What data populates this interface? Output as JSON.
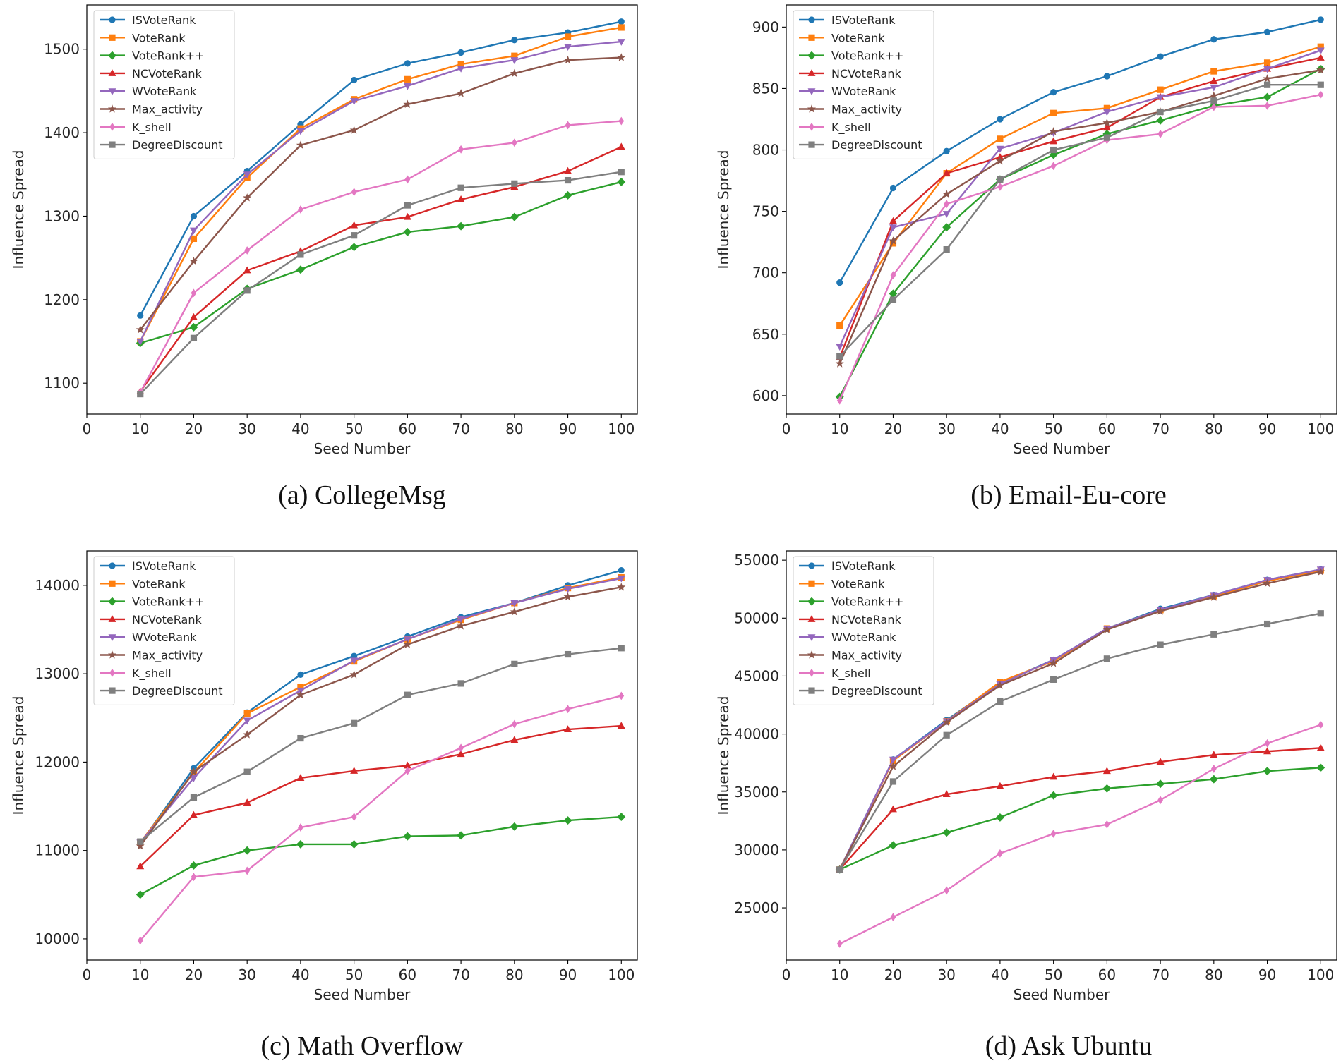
{
  "series_styles": [
    {
      "name": "ISVoteRank",
      "color": "#1f77b4",
      "marker": "circle"
    },
    {
      "name": "VoteRank",
      "color": "#ff7f0e",
      "marker": "square"
    },
    {
      "name": "VoteRank++",
      "color": "#2ca02c",
      "marker": "diamond"
    },
    {
      "name": "NCVoteRank",
      "color": "#d62728",
      "marker": "triangle"
    },
    {
      "name": "WVoteRank",
      "color": "#9467bd",
      "marker": "triangle-down"
    },
    {
      "name": "Max_activity",
      "color": "#8c564b",
      "marker": "star"
    },
    {
      "name": "K_shell",
      "color": "#e377c2",
      "marker": "thin-diamond"
    },
    {
      "name": "DegreeDiscount",
      "color": "#7f7f7f",
      "marker": "square"
    }
  ],
  "chart_data": [
    {
      "type": "line",
      "caption": "(a) CollegeMsg",
      "xlabel": "Seed Number",
      "ylabel": "Influence Spread",
      "xlim": [
        0,
        103
      ],
      "ylim": [
        1063,
        1553
      ],
      "xticks": [
        0,
        10,
        20,
        30,
        40,
        50,
        60,
        70,
        80,
        90,
        100
      ],
      "yticks": [
        1100,
        1200,
        1300,
        1400,
        1500
      ],
      "legend_position": "upper-left",
      "x": [
        10,
        20,
        30,
        40,
        50,
        60,
        70,
        80,
        90,
        100
      ],
      "series": [
        {
          "name": "ISVoteRank",
          "values": [
            1181,
            1300,
            1354,
            1410,
            1463,
            1483,
            1496,
            1511,
            1520,
            1533
          ]
        },
        {
          "name": "VoteRank",
          "values": [
            1150,
            1273,
            1346,
            1405,
            1440,
            1464,
            1482,
            1492,
            1515,
            1526
          ]
        },
        {
          "name": "VoteRank++",
          "values": [
            1148,
            1167,
            1213,
            1236,
            1263,
            1281,
            1288,
            1299,
            1325,
            1341
          ]
        },
        {
          "name": "NCVoteRank",
          "values": [
            1090,
            1179,
            1235,
            1258,
            1289,
            1299,
            1320,
            1335,
            1354,
            1383
          ]
        },
        {
          "name": "WVoteRank",
          "values": [
            1150,
            1283,
            1350,
            1402,
            1438,
            1456,
            1477,
            1487,
            1503,
            1509
          ]
        },
        {
          "name": "Max_activity",
          "values": [
            1164,
            1246,
            1322,
            1385,
            1403,
            1434,
            1447,
            1471,
            1487,
            1490
          ]
        },
        {
          "name": "K_shell",
          "values": [
            1089,
            1208,
            1259,
            1308,
            1329,
            1344,
            1380,
            1388,
            1409,
            1414
          ]
        },
        {
          "name": "DegreeDiscount",
          "values": [
            1087,
            1154,
            1211,
            1254,
            1277,
            1313,
            1334,
            1339,
            1343,
            1353
          ]
        }
      ]
    },
    {
      "type": "line",
      "caption": "(b) Email-Eu-core",
      "xlabel": "Seed Number",
      "ylabel": "Influence Spread",
      "xlim": [
        0,
        103
      ],
      "ylim": [
        585,
        918
      ],
      "xticks": [
        0,
        10,
        20,
        30,
        40,
        50,
        60,
        70,
        80,
        90,
        100
      ],
      "yticks": [
        600,
        650,
        700,
        750,
        800,
        850,
        900
      ],
      "legend_position": "upper-left",
      "x": [
        10,
        20,
        30,
        40,
        50,
        60,
        70,
        80,
        90,
        100
      ],
      "series": [
        {
          "name": "ISVoteRank",
          "values": [
            692,
            769,
            799,
            825,
            847,
            860,
            876,
            890,
            896,
            906
          ]
        },
        {
          "name": "VoteRank",
          "values": [
            657,
            724,
            781,
            809,
            830,
            834,
            849,
            864,
            871,
            884
          ]
        },
        {
          "name": "VoteRank++",
          "values": [
            599,
            683,
            737,
            776,
            796,
            813,
            824,
            836,
            843,
            866
          ]
        },
        {
          "name": "NCVoteRank",
          "values": [
            631,
            742,
            781,
            794,
            807,
            818,
            843,
            856,
            866,
            875
          ]
        },
        {
          "name": "WVoteRank",
          "values": [
            640,
            737,
            748,
            801,
            814,
            831,
            843,
            851,
            866,
            881
          ]
        },
        {
          "name": "Max_activity",
          "values": [
            626,
            726,
            764,
            791,
            815,
            822,
            831,
            844,
            858,
            865
          ]
        },
        {
          "name": "K_shell",
          "values": [
            596,
            698,
            756,
            770,
            787,
            808,
            813,
            835,
            836,
            845
          ]
        },
        {
          "name": "DegreeDiscount",
          "values": [
            632,
            678,
            719,
            776,
            800,
            810,
            831,
            840,
            853,
            853
          ]
        }
      ]
    },
    {
      "type": "line",
      "caption": "(c) Math Overflow",
      "xlabel": "Seed Number",
      "ylabel": "Influence Spread",
      "xlim": [
        0,
        103
      ],
      "ylim": [
        9760,
        14390
      ],
      "xticks": [
        0,
        10,
        20,
        30,
        40,
        50,
        60,
        70,
        80,
        90,
        100
      ],
      "yticks": [
        10000,
        11000,
        12000,
        13000,
        14000
      ],
      "legend_position": "upper-left",
      "x": [
        10,
        20,
        30,
        40,
        50,
        60,
        70,
        80,
        90,
        100
      ],
      "series": [
        {
          "name": "ISVoteRank",
          "values": [
            11080,
            11930,
            12560,
            12990,
            13200,
            13420,
            13640,
            13800,
            14000,
            14170
          ]
        },
        {
          "name": "VoteRank",
          "values": [
            11090,
            11880,
            12550,
            12850,
            13140,
            13390,
            13610,
            13800,
            13970,
            14090
          ]
        },
        {
          "name": "VoteRank++",
          "values": [
            10500,
            10830,
            11000,
            11070,
            11070,
            11160,
            11170,
            11270,
            11340,
            11380
          ]
        },
        {
          "name": "NCVoteRank",
          "values": [
            10820,
            11400,
            11540,
            11820,
            11900,
            11960,
            12090,
            12250,
            12370,
            12410
          ]
        },
        {
          "name": "WVoteRank",
          "values": [
            11090,
            11820,
            12470,
            12810,
            13150,
            13390,
            13620,
            13800,
            13960,
            14080
          ]
        },
        {
          "name": "Max_activity",
          "values": [
            11050,
            11890,
            12310,
            12760,
            12990,
            13330,
            13540,
            13700,
            13870,
            13980
          ]
        },
        {
          "name": "K_shell",
          "values": [
            9980,
            10700,
            10770,
            11260,
            11380,
            11900,
            12160,
            12430,
            12600,
            12750
          ]
        },
        {
          "name": "DegreeDiscount",
          "values": [
            11100,
            11600,
            11890,
            12270,
            12440,
            12760,
            12890,
            13110,
            13220,
            13290
          ]
        }
      ]
    },
    {
      "type": "line",
      "caption": "(d) Ask Ubuntu",
      "xlabel": "Seed Number",
      "ylabel": "Influence Spread",
      "xlim": [
        0,
        103
      ],
      "ylim": [
        20500,
        55800
      ],
      "xticks": [
        0,
        10,
        20,
        30,
        40,
        50,
        60,
        70,
        80,
        90,
        100
      ],
      "yticks": [
        25000,
        30000,
        35000,
        40000,
        45000,
        50000,
        55000
      ],
      "legend_position": "upper-left",
      "x": [
        10,
        20,
        30,
        40,
        50,
        60,
        70,
        80,
        90,
        100
      ],
      "series": [
        {
          "name": "ISVoteRank",
          "values": [
            28300,
            37800,
            41200,
            44400,
            46400,
            49100,
            50800,
            52000,
            53300,
            54200
          ]
        },
        {
          "name": "VoteRank",
          "values": [
            28300,
            37700,
            41100,
            44500,
            46300,
            49100,
            50700,
            51900,
            53200,
            54100
          ]
        },
        {
          "name": "VoteRank++",
          "values": [
            28300,
            30400,
            31500,
            32800,
            34700,
            35300,
            35700,
            36100,
            36800,
            37100
          ]
        },
        {
          "name": "NCVoteRank",
          "values": [
            28300,
            33500,
            34800,
            35500,
            36300,
            36800,
            37600,
            38200,
            38500,
            38800
          ]
        },
        {
          "name": "WVoteRank",
          "values": [
            28300,
            37800,
            41100,
            44300,
            46400,
            49100,
            50700,
            52000,
            53300,
            54200
          ]
        },
        {
          "name": "Max_activity",
          "values": [
            28300,
            37200,
            41000,
            44200,
            46100,
            49000,
            50600,
            51800,
            53000,
            54000
          ]
        },
        {
          "name": "K_shell",
          "values": [
            21900,
            24200,
            26500,
            29700,
            31400,
            32200,
            34300,
            37000,
            39200,
            40800
          ]
        },
        {
          "name": "DegreeDiscount",
          "values": [
            28300,
            35900,
            39900,
            42800,
            44700,
            46500,
            47700,
            48600,
            49500,
            50400
          ]
        }
      ]
    }
  ]
}
